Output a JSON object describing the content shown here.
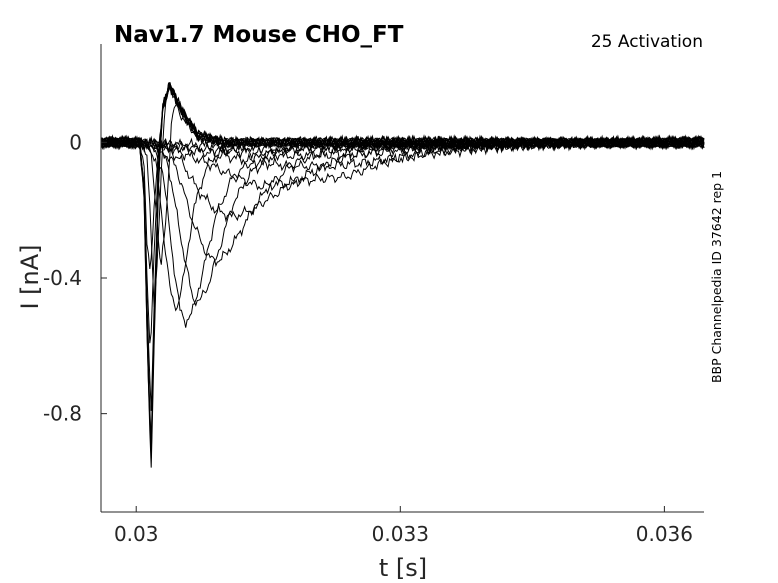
{
  "chart_data": {
    "type": "line",
    "title": "Nav1.7  Mouse  CHO_FT",
    "annotation": "25  Activation",
    "side_label": "BBP Channelpedia ID 37642 rep 1",
    "xlabel": "t [s]",
    "ylabel": "I [nA]",
    "xlim": [
      0.0296,
      0.03645
    ],
    "ylim": [
      -1.09,
      0.29
    ],
    "xticks": [
      0.03,
      0.033,
      0.036
    ],
    "xtick_labels": [
      "0.03",
      "0.033",
      "0.036"
    ],
    "yticks": [
      0,
      -0.4,
      -0.8
    ],
    "ytick_labels": [
      "0",
      "-0.4",
      "-0.8"
    ],
    "grid": false,
    "line_color": "#000000",
    "series": [
      {
        "values": [
          [
            0.0296,
            0
          ],
          [
            0.02995,
            0
          ],
          [
            0.03004,
            -0.005
          ],
          [
            0.03009,
            -0.08
          ],
          [
            0.03012,
            -0.28
          ],
          [
            0.03016,
            -0.38
          ],
          [
            0.03021,
            -0.18
          ],
          [
            0.03025,
            -0.03
          ],
          [
            0.0303,
            0.1
          ],
          [
            0.03038,
            0.17
          ],
          [
            0.0305,
            0.1
          ],
          [
            0.0307,
            0.02
          ],
          [
            0.031,
            0
          ],
          [
            0.0364,
            0
          ]
        ]
      },
      {
        "values": [
          [
            0.0296,
            0
          ],
          [
            0.02995,
            0
          ],
          [
            0.03004,
            -0.005
          ],
          [
            0.03009,
            -0.12
          ],
          [
            0.03013,
            -0.45
          ],
          [
            0.03016,
            -0.64
          ],
          [
            0.0302,
            -0.35
          ],
          [
            0.03025,
            -0.05
          ],
          [
            0.0303,
            0.1
          ],
          [
            0.03038,
            0.17
          ],
          [
            0.0305,
            0.1
          ],
          [
            0.0307,
            0.02
          ],
          [
            0.031,
            0
          ],
          [
            0.0364,
            0
          ]
        ]
      },
      {
        "values": [
          [
            0.0296,
            0
          ],
          [
            0.02995,
            0
          ],
          [
            0.03004,
            -0.005
          ],
          [
            0.03009,
            -0.14
          ],
          [
            0.03013,
            -0.55
          ],
          [
            0.03017,
            -0.79
          ],
          [
            0.03021,
            -0.42
          ],
          [
            0.03026,
            -0.06
          ],
          [
            0.0303,
            0.1
          ],
          [
            0.03038,
            0.17
          ],
          [
            0.0305,
            0.1
          ],
          [
            0.0307,
            0.02
          ],
          [
            0.031,
            0
          ],
          [
            0.0364,
            0
          ]
        ]
      },
      {
        "values": [
          [
            0.0296,
            0
          ],
          [
            0.02995,
            0
          ],
          [
            0.03004,
            -0.005
          ],
          [
            0.03009,
            -0.15
          ],
          [
            0.03013,
            -0.6
          ],
          [
            0.03017,
            -0.88
          ],
          [
            0.03021,
            -0.48
          ],
          [
            0.03026,
            -0.07
          ],
          [
            0.0303,
            0.1
          ],
          [
            0.03038,
            0.17
          ],
          [
            0.0305,
            0.1
          ],
          [
            0.0307,
            0.02
          ],
          [
            0.031,
            0
          ],
          [
            0.0364,
            0
          ]
        ]
      },
      {
        "values": [
          [
            0.0296,
            0
          ],
          [
            0.02995,
            0
          ],
          [
            0.03004,
            -0.005
          ],
          [
            0.03009,
            -0.16
          ],
          [
            0.03013,
            -0.64
          ],
          [
            0.03017,
            -0.94
          ],
          [
            0.03021,
            -0.5
          ],
          [
            0.03026,
            -0.07
          ],
          [
            0.0303,
            0.1
          ],
          [
            0.03038,
            0.17
          ],
          [
            0.0305,
            0.1
          ],
          [
            0.0307,
            0.02
          ],
          [
            0.031,
            0
          ],
          [
            0.0364,
            0
          ]
        ]
      },
      {
        "values": [
          [
            0.0296,
            0
          ],
          [
            0.02995,
            0
          ],
          [
            0.03004,
            -0.005
          ],
          [
            0.03009,
            -0.16
          ],
          [
            0.03013,
            -0.66
          ],
          [
            0.03017,
            -0.97
          ],
          [
            0.03021,
            -0.52
          ],
          [
            0.03026,
            -0.07
          ],
          [
            0.0303,
            0.1
          ],
          [
            0.03038,
            0.17
          ],
          [
            0.0305,
            0.1
          ],
          [
            0.0307,
            0.02
          ],
          [
            0.031,
            0
          ],
          [
            0.0364,
            0
          ]
        ]
      },
      {
        "values": [
          [
            0.0296,
            0
          ],
          [
            0.02995,
            0
          ],
          [
            0.03004,
            -0.005
          ],
          [
            0.03009,
            -0.15
          ],
          [
            0.03013,
            -0.61
          ],
          [
            0.03017,
            -0.9
          ],
          [
            0.03021,
            -0.49
          ],
          [
            0.03026,
            -0.07
          ],
          [
            0.0303,
            0.1
          ],
          [
            0.03038,
            0.17
          ],
          [
            0.0305,
            0.1
          ],
          [
            0.0307,
            0.02
          ],
          [
            0.031,
            0
          ],
          [
            0.0364,
            0
          ]
        ]
      },
      {
        "values": [
          [
            0.0296,
            0
          ],
          [
            0.02995,
            0
          ],
          [
            0.03006,
            -0.005
          ],
          [
            0.03012,
            -0.03
          ],
          [
            0.03016,
            -0.2
          ],
          [
            0.0302,
            -0.5
          ],
          [
            0.03024,
            -0.35
          ],
          [
            0.03028,
            -0.1
          ],
          [
            0.03033,
            0.11
          ],
          [
            0.03039,
            0.17
          ],
          [
            0.0305,
            0.1
          ],
          [
            0.0307,
            0.02
          ],
          [
            0.031,
            0
          ],
          [
            0.0364,
            0
          ]
        ]
      },
      {
        "values": [
          [
            0.0296,
            0
          ],
          [
            0.02995,
            0
          ],
          [
            0.03008,
            -0.005
          ],
          [
            0.03016,
            -0.02
          ],
          [
            0.03022,
            -0.17
          ],
          [
            0.03028,
            -0.38
          ],
          [
            0.03034,
            -0.22
          ],
          [
            0.0304,
            0.06
          ],
          [
            0.03045,
            0.11
          ],
          [
            0.0306,
            0.04
          ],
          [
            0.0308,
            0.01
          ],
          [
            0.031,
            0
          ],
          [
            0.0364,
            0
          ]
        ]
      },
      {
        "values": [
          [
            0.0296,
            0
          ],
          [
            0.02995,
            0
          ],
          [
            0.03012,
            -0.005
          ],
          [
            0.03022,
            -0.05
          ],
          [
            0.03032,
            -0.29
          ],
          [
            0.0304,
            -0.46
          ],
          [
            0.03046,
            -0.49
          ],
          [
            0.03054,
            -0.4
          ],
          [
            0.03065,
            -0.2
          ],
          [
            0.0308,
            -0.07
          ],
          [
            0.031,
            -0.02
          ],
          [
            0.0315,
            0
          ],
          [
            0.0364,
            0
          ]
        ]
      },
      {
        "values": [
          [
            0.0296,
            0
          ],
          [
            0.02995,
            0
          ],
          [
            0.03016,
            -0.005
          ],
          [
            0.0303,
            -0.08
          ],
          [
            0.03042,
            -0.35
          ],
          [
            0.0305,
            -0.5
          ],
          [
            0.03056,
            -0.53
          ],
          [
            0.03064,
            -0.5
          ],
          [
            0.03076,
            -0.38
          ],
          [
            0.0309,
            -0.22
          ],
          [
            0.0311,
            -0.1
          ],
          [
            0.0314,
            -0.04
          ],
          [
            0.0318,
            -0.01
          ],
          [
            0.0364,
            0
          ]
        ]
      },
      {
        "values": [
          [
            0.0296,
            0
          ],
          [
            0.02995,
            0
          ],
          [
            0.0302,
            -0.005
          ],
          [
            0.03036,
            -0.06
          ],
          [
            0.03052,
            -0.3
          ],
          [
            0.03064,
            -0.46
          ],
          [
            0.03072,
            -0.47
          ],
          [
            0.03082,
            -0.42
          ],
          [
            0.03096,
            -0.3
          ],
          [
            0.0311,
            -0.18
          ],
          [
            0.0313,
            -0.09
          ],
          [
            0.0316,
            -0.03
          ],
          [
            0.032,
            -0.01
          ],
          [
            0.0364,
            0
          ]
        ]
      },
      {
        "values": [
          [
            0.0296,
            0
          ],
          [
            0.02995,
            0
          ],
          [
            0.03025,
            -0.01
          ],
          [
            0.03045,
            -0.07
          ],
          [
            0.03065,
            -0.24
          ],
          [
            0.03082,
            -0.34
          ],
          [
            0.03095,
            -0.35
          ],
          [
            0.0311,
            -0.3
          ],
          [
            0.0313,
            -0.21
          ],
          [
            0.0315,
            -0.13
          ],
          [
            0.0318,
            -0.06
          ],
          [
            0.0322,
            -0.02
          ],
          [
            0.0326,
            -0.01
          ],
          [
            0.0364,
            0
          ]
        ]
      },
      {
        "values": [
          [
            0.0296,
            0
          ],
          [
            0.02995,
            0
          ],
          [
            0.0303,
            -0.01
          ],
          [
            0.0305,
            -0.05
          ],
          [
            0.0307,
            -0.14
          ],
          [
            0.0309,
            -0.2
          ],
          [
            0.0311,
            -0.22
          ],
          [
            0.0313,
            -0.2
          ],
          [
            0.0316,
            -0.15
          ],
          [
            0.0319,
            -0.1
          ],
          [
            0.0323,
            -0.05
          ],
          [
            0.0328,
            -0.02
          ],
          [
            0.0333,
            -0.01
          ],
          [
            0.0364,
            0
          ]
        ]
      },
      {
        "values": [
          [
            0.0296,
            0
          ],
          [
            0.02995,
            0
          ],
          [
            0.0303,
            -0.01
          ],
          [
            0.0305,
            -0.03
          ],
          [
            0.0308,
            -0.06
          ],
          [
            0.0311,
            -0.1
          ],
          [
            0.0314,
            -0.13
          ],
          [
            0.0317,
            -0.12
          ],
          [
            0.032,
            -0.11
          ],
          [
            0.0324,
            -0.1
          ],
          [
            0.0328,
            -0.06
          ],
          [
            0.0333,
            -0.03
          ],
          [
            0.0338,
            -0.015
          ],
          [
            0.0345,
            -0.005
          ],
          [
            0.0364,
            0
          ]
        ]
      },
      {
        "values": [
          [
            0.0296,
            0
          ],
          [
            0.02995,
            0
          ],
          [
            0.0303,
            -0.01
          ],
          [
            0.0306,
            -0.02
          ],
          [
            0.031,
            -0.04
          ],
          [
            0.0314,
            -0.06
          ],
          [
            0.0318,
            -0.07
          ],
          [
            0.0322,
            -0.07
          ],
          [
            0.0326,
            -0.06
          ],
          [
            0.033,
            -0.045
          ],
          [
            0.0334,
            -0.03
          ],
          [
            0.034,
            -0.015
          ],
          [
            0.0346,
            -0.005
          ],
          [
            0.0364,
            0
          ]
        ]
      },
      {
        "values": [
          [
            0.0296,
            0
          ],
          [
            0.02995,
            0
          ],
          [
            0.0303,
            -0.005
          ],
          [
            0.0308,
            -0.02
          ],
          [
            0.0313,
            -0.03
          ],
          [
            0.0318,
            -0.04
          ],
          [
            0.0323,
            -0.035
          ],
          [
            0.0328,
            -0.03
          ],
          [
            0.0334,
            -0.02
          ],
          [
            0.034,
            -0.01
          ],
          [
            0.0346,
            -0.005
          ],
          [
            0.0364,
            0
          ]
        ]
      },
      {
        "values": [
          [
            0.0296,
            0
          ],
          [
            0.02995,
            0
          ],
          [
            0.0303,
            -0.005
          ],
          [
            0.0308,
            -0.01
          ],
          [
            0.0313,
            -0.015
          ],
          [
            0.0318,
            -0.02
          ],
          [
            0.0324,
            -0.015
          ],
          [
            0.033,
            -0.01
          ],
          [
            0.0336,
            -0.005
          ],
          [
            0.0364,
            0
          ]
        ]
      }
    ]
  }
}
